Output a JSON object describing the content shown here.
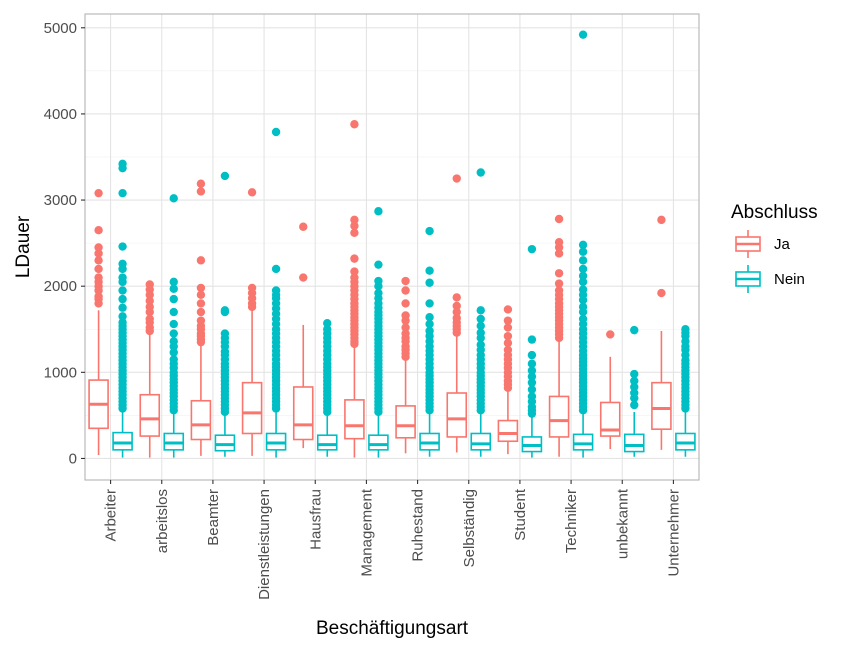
{
  "chart_data": {
    "type": "boxplot",
    "xlabel": "Beschäftigungsart",
    "ylabel": "LDauer",
    "ylim": [
      -250,
      5160
    ],
    "yticks": [
      0,
      1000,
      2000,
      3000,
      4000,
      5000
    ],
    "grid": true,
    "legend": {
      "title": "Abschluss",
      "position": "right"
    },
    "categories": [
      "Arbeiter",
      "arbeitslos",
      "Beamter",
      "Dienstleistungen",
      "Hausfrau",
      "Management",
      "Ruhestand",
      "Selbständig",
      "Student",
      "Techniker",
      "unbekannt",
      "Unternehmer"
    ],
    "series": [
      {
        "name": "Ja",
        "color": "#F8766D",
        "boxes": [
          {
            "min": 40,
            "q1": 350,
            "median": 630,
            "q3": 910,
            "max": 1720,
            "outliers": [
              1800,
              1850,
              1880,
              1950,
              2000,
              2050,
              2100,
              2200,
              2300,
              2380,
              2450,
              2650,
              3080
            ]
          },
          {
            "min": 10,
            "q1": 260,
            "median": 460,
            "q3": 740,
            "max": 1450,
            "outliers": [
              1480,
              1520,
              1580,
              1620,
              1700,
              1760,
              1830,
              1900,
              1960,
              2020
            ]
          },
          {
            "min": 30,
            "q1": 220,
            "median": 390,
            "q3": 670,
            "max": 1320,
            "outliers": [
              1350,
              1380,
              1420,
              1450,
              1500,
              1540,
              1600,
              1700,
              1800,
              1900,
              1980,
              2300,
              3100,
              3190
            ]
          },
          {
            "min": 30,
            "q1": 290,
            "median": 530,
            "q3": 880,
            "max": 1730,
            "outliers": [
              1760,
              1800,
              1860,
              1920,
              1980,
              3090
            ]
          },
          {
            "min": 120,
            "q1": 220,
            "median": 390,
            "q3": 830,
            "max": 1550,
            "outliers": [
              2100,
              2690
            ]
          },
          {
            "min": 10,
            "q1": 230,
            "median": 380,
            "q3": 680,
            "max": 1300,
            "outliers": [
              1330,
              1360,
              1400,
              1440,
              1480,
              1520,
              1560,
              1600,
              1640,
              1680,
              1720,
              1760,
              1800,
              1850,
              1900,
              1950,
              2000,
              2050,
              2100,
              2170,
              2320,
              2620,
              2700,
              2770,
              3880
            ]
          },
          {
            "min": 60,
            "q1": 240,
            "median": 380,
            "q3": 610,
            "max": 1140,
            "outliers": [
              1180,
              1220,
              1260,
              1300,
              1360,
              1400,
              1450,
              1520,
              1600,
              1660,
              1800,
              1950,
              2060
            ]
          },
          {
            "min": 70,
            "q1": 250,
            "median": 460,
            "q3": 760,
            "max": 1430,
            "outliers": [
              1460,
              1500,
              1540,
              1580,
              1630,
              1700,
              1770,
              1870,
              3250
            ]
          },
          {
            "min": 50,
            "q1": 200,
            "median": 290,
            "q3": 440,
            "max": 780,
            "outliers": [
              820,
              860,
              900,
              950,
              1000,
              1050,
              1100,
              1150,
              1200,
              1260,
              1340,
              1420,
              1520,
              1600,
              1730
            ]
          },
          {
            "min": 20,
            "q1": 250,
            "median": 440,
            "q3": 720,
            "max": 1360,
            "outliers": [
              1400,
              1440,
              1480,
              1520,
              1560,
              1600,
              1640,
              1680,
              1720,
              1760,
              1800,
              1850,
              1900,
              1950,
              2030,
              2150,
              2380,
              2450,
              2510,
              2780
            ]
          },
          {
            "min": 110,
            "q1": 260,
            "median": 330,
            "q3": 650,
            "max": 1180,
            "outliers": [
              1440
            ]
          },
          {
            "min": 100,
            "q1": 340,
            "median": 580,
            "q3": 880,
            "max": 1480,
            "outliers": [
              1920,
              2770
            ]
          }
        ]
      },
      {
        "name": "Nein",
        "color": "#00BFC4",
        "boxes": [
          {
            "min": 10,
            "q1": 100,
            "median": 180,
            "q3": 300,
            "max": 560,
            "outliers": [
              580,
              620,
              660,
              700,
              740,
              780,
              820,
              860,
              900,
              940,
              980,
              1020,
              1060,
              1100,
              1140,
              1180,
              1220,
              1260,
              1300,
              1340,
              1380,
              1420,
              1460,
              1500,
              1540,
              1580,
              1650,
              1750,
              1850,
              1950,
              2050,
              2100,
              2200,
              2260,
              2460,
              3080,
              3370,
              3420
            ]
          },
          {
            "min": 10,
            "q1": 100,
            "median": 180,
            "q3": 290,
            "max": 540,
            "outliers": [
              560,
              600,
              640,
              680,
              720,
              760,
              800,
              840,
              880,
              920,
              960,
              1000,
              1050,
              1100,
              1150,
              1230,
              1300,
              1360,
              1450,
              1560,
              1700,
              1850,
              1970,
              2050,
              3020
            ]
          },
          {
            "min": 20,
            "q1": 90,
            "median": 160,
            "q3": 270,
            "max": 520,
            "outliers": [
              540,
              580,
              620,
              660,
              700,
              740,
              780,
              820,
              860,
              900,
              940,
              980,
              1020,
              1060,
              1100,
              1150,
              1200,
              1240,
              1300,
              1350,
              1400,
              1450,
              1700,
              1720,
              3280
            ]
          },
          {
            "min": 10,
            "q1": 100,
            "median": 180,
            "q3": 290,
            "max": 560,
            "outliers": [
              580,
              620,
              660,
              700,
              740,
              780,
              820,
              860,
              900,
              940,
              980,
              1020,
              1060,
              1100,
              1150,
              1200,
              1250,
              1300,
              1350,
              1400,
              1450,
              1500,
              1560,
              1620,
              1680,
              1740,
              1800,
              1860,
              1900,
              1950,
              2200,
              3790
            ]
          },
          {
            "min": 20,
            "q1": 100,
            "median": 160,
            "q3": 270,
            "max": 520,
            "outliers": [
              540,
              580,
              620,
              660,
              700,
              740,
              780,
              820,
              860,
              900,
              940,
              980,
              1020,
              1060,
              1100,
              1150,
              1200,
              1250,
              1300,
              1350,
              1400,
              1450,
              1500,
              1570
            ]
          },
          {
            "min": 10,
            "q1": 100,
            "median": 160,
            "q3": 270,
            "max": 520,
            "outliers": [
              540,
              580,
              620,
              660,
              700,
              740,
              780,
              820,
              860,
              900,
              940,
              980,
              1020,
              1060,
              1100,
              1140,
              1180,
              1220,
              1260,
              1300,
              1340,
              1380,
              1420,
              1460,
              1500,
              1540,
              1580,
              1620,
              1660,
              1700,
              1750,
              1800,
              1860,
              1920,
              2000,
              2060,
              2250,
              2870
            ]
          },
          {
            "min": 20,
            "q1": 100,
            "median": 180,
            "q3": 290,
            "max": 540,
            "outliers": [
              560,
              600,
              640,
              680,
              720,
              760,
              800,
              840,
              880,
              920,
              960,
              1000,
              1050,
              1100,
              1150,
              1200,
              1250,
              1300,
              1360,
              1420,
              1480,
              1560,
              1640,
              1800,
              2040,
              2180,
              2640
            ]
          },
          {
            "min": 20,
            "q1": 100,
            "median": 170,
            "q3": 290,
            "max": 540,
            "outliers": [
              560,
              600,
              640,
              680,
              720,
              760,
              800,
              840,
              880,
              920,
              960,
              1000,
              1050,
              1100,
              1150,
              1200,
              1260,
              1320,
              1400,
              1460,
              1540,
              1620,
              1720,
              3320
            ]
          },
          {
            "min": 10,
            "q1": 80,
            "median": 150,
            "q3": 250,
            "max": 490,
            "outliers": [
              520,
              560,
              600,
              660,
              720,
              800,
              880,
              950,
              1020,
              1100,
              1200,
              1380,
              2430
            ]
          },
          {
            "min": 10,
            "q1": 100,
            "median": 170,
            "q3": 280,
            "max": 540,
            "outliers": [
              560,
              600,
              640,
              680,
              720,
              760,
              800,
              840,
              880,
              920,
              960,
              1000,
              1040,
              1080,
              1120,
              1160,
              1200,
              1250,
              1300,
              1350,
              1400,
              1450,
              1500,
              1560,
              1620,
              1700,
              1760,
              1840,
              1900,
              1960,
              2050,
              2120,
              2200,
              2300,
              2400,
              2480,
              4920
            ]
          },
          {
            "min": 20,
            "q1": 80,
            "median": 150,
            "q3": 280,
            "max": 540,
            "outliers": [
              620,
              700,
              760,
              830,
              900,
              980,
              1490
            ]
          },
          {
            "min": 20,
            "q1": 100,
            "median": 180,
            "q3": 290,
            "max": 560,
            "outliers": [
              580,
              620,
              660,
              700,
              740,
              780,
              820,
              860,
              900,
              940,
              980,
              1020,
              1060,
              1100,
              1140,
              1200,
              1260,
              1300,
              1360,
              1420,
              1460,
              1500
            ]
          }
        ]
      }
    ]
  }
}
